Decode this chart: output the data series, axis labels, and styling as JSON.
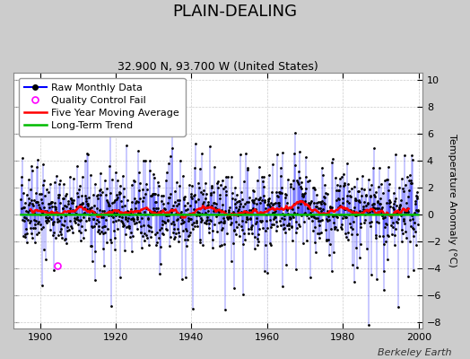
{
  "title": "PLAIN-DEALING",
  "subtitle": "32.900 N, 93.700 W (United States)",
  "ylabel": "Temperature Anomaly (°C)",
  "credit": "Berkeley Earth",
  "xlim": [
    1893,
    2001
  ],
  "ylim": [
    -8.5,
    10.5
  ],
  "yticks": [
    -8,
    -6,
    -4,
    -2,
    0,
    2,
    4,
    6,
    8,
    10
  ],
  "xticks": [
    1900,
    1920,
    1940,
    1960,
    1980,
    2000
  ],
  "seed": 42,
  "start_year": 1895,
  "end_year": 2000,
  "raw_color": "#0000ff",
  "dot_color": "#000000",
  "ma_color": "#ff0000",
  "trend_color": "#00bb00",
  "qc_color": "#ff00ff",
  "plot_bg_color": "#ffffff",
  "fig_bg_color": "#cccccc",
  "legend_fontsize": 8,
  "title_fontsize": 13,
  "subtitle_fontsize": 9,
  "credit_fontsize": 8
}
